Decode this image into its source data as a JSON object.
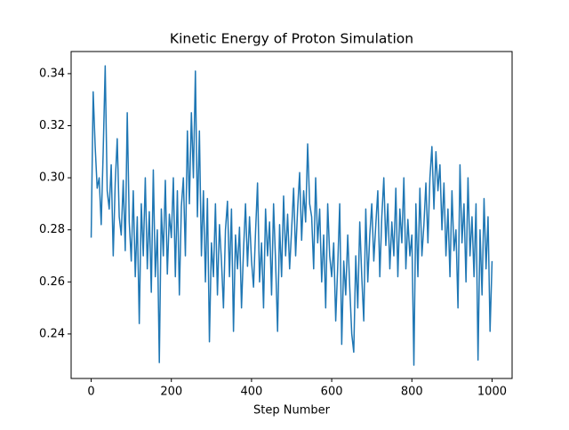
{
  "chart_data": {
    "type": "line",
    "title": "Kinetic Energy of Proton Simulation",
    "x_label": "Step Number",
    "color": "#1f77b4",
    "xlim": [
      -50,
      1050
    ],
    "xticks": [
      0,
      200,
      400,
      600,
      800,
      1000
    ],
    "ylim": [
      0.2229,
      0.3485
    ],
    "yticks": [
      0.24,
      0.26,
      0.28,
      {
        "value": 0.3,
        "label": "0.30"
      },
      0.32,
      0.34
    ],
    "x": [
      0,
      5,
      10,
      15,
      20,
      25,
      30,
      35,
      40,
      45,
      50,
      55,
      60,
      65,
      70,
      75,
      80,
      85,
      90,
      95,
      100,
      105,
      110,
      115,
      120,
      125,
      130,
      135,
      140,
      145,
      150,
      155,
      160,
      165,
      170,
      175,
      180,
      185,
      190,
      195,
      200,
      205,
      210,
      215,
      220,
      225,
      230,
      235,
      240,
      245,
      250,
      255,
      260,
      265,
      270,
      275,
      280,
      285,
      290,
      295,
      300,
      305,
      310,
      315,
      320,
      325,
      330,
      335,
      340,
      345,
      350,
      355,
      360,
      365,
      370,
      375,
      380,
      385,
      390,
      395,
      400,
      405,
      410,
      415,
      420,
      425,
      430,
      435,
      440,
      445,
      450,
      455,
      460,
      465,
      470,
      475,
      480,
      485,
      490,
      495,
      500,
      505,
      510,
      515,
      520,
      525,
      530,
      535,
      540,
      545,
      550,
      555,
      560,
      565,
      570,
      575,
      580,
      585,
      590,
      595,
      600,
      605,
      610,
      615,
      620,
      625,
      630,
      635,
      640,
      645,
      650,
      655,
      660,
      665,
      670,
      675,
      680,
      685,
      690,
      695,
      700,
      705,
      710,
      715,
      720,
      725,
      730,
      735,
      740,
      745,
      750,
      755,
      760,
      765,
      770,
      775,
      780,
      785,
      790,
      795,
      800,
      805,
      810,
      815,
      820,
      825,
      830,
      835,
      840,
      845,
      850,
      855,
      860,
      865,
      870,
      875,
      880,
      885,
      890,
      895,
      900,
      905,
      910,
      915,
      920,
      925,
      930,
      935,
      940,
      945,
      950,
      955,
      960,
      965,
      970,
      975,
      980,
      985,
      990,
      995,
      1000
    ],
    "values": [
      0.277,
      0.333,
      0.312,
      0.296,
      0.3,
      0.282,
      0.31,
      0.343,
      0.295,
      0.288,
      0.305,
      0.27,
      0.298,
      0.315,
      0.285,
      0.278,
      0.299,
      0.272,
      0.325,
      0.283,
      0.268,
      0.295,
      0.262,
      0.285,
      0.244,
      0.29,
      0.27,
      0.3,
      0.265,
      0.287,
      0.256,
      0.303,
      0.262,
      0.28,
      0.229,
      0.288,
      0.27,
      0.299,
      0.263,
      0.286,
      0.277,
      0.3,
      0.262,
      0.295,
      0.255,
      0.289,
      0.3,
      0.27,
      0.318,
      0.29,
      0.325,
      0.3,
      0.341,
      0.285,
      0.318,
      0.27,
      0.295,
      0.26,
      0.292,
      0.237,
      0.275,
      0.262,
      0.29,
      0.255,
      0.282,
      0.268,
      0.25,
      0.28,
      0.291,
      0.262,
      0.288,
      0.241,
      0.278,
      0.265,
      0.281,
      0.25,
      0.272,
      0.29,
      0.266,
      0.285,
      0.268,
      0.258,
      0.279,
      0.298,
      0.26,
      0.275,
      0.25,
      0.288,
      0.27,
      0.283,
      0.255,
      0.29,
      0.268,
      0.241,
      0.282,
      0.262,
      0.293,
      0.27,
      0.286,
      0.265,
      0.28,
      0.296,
      0.27,
      0.288,
      0.302,
      0.276,
      0.295,
      0.283,
      0.313,
      0.29,
      0.285,
      0.265,
      0.3,
      0.275,
      0.288,
      0.26,
      0.278,
      0.25,
      0.29,
      0.27,
      0.262,
      0.275,
      0.245,
      0.266,
      0.29,
      0.236,
      0.268,
      0.255,
      0.278,
      0.258,
      0.24,
      0.233,
      0.27,
      0.25,
      0.283,
      0.262,
      0.245,
      0.288,
      0.26,
      0.278,
      0.29,
      0.268,
      0.282,
      0.295,
      0.262,
      0.285,
      0.3,
      0.274,
      0.29,
      0.265,
      0.283,
      0.27,
      0.296,
      0.262,
      0.288,
      0.275,
      0.3,
      0.265,
      0.284,
      0.27,
      0.278,
      0.228,
      0.29,
      0.262,
      0.296,
      0.27,
      0.282,
      0.298,
      0.275,
      0.3,
      0.312,
      0.288,
      0.31,
      0.295,
      0.305,
      0.28,
      0.298,
      0.27,
      0.288,
      0.262,
      0.295,
      0.272,
      0.28,
      0.25,
      0.305,
      0.275,
      0.29,
      0.26,
      0.3,
      0.27,
      0.285,
      0.262,
      0.29,
      0.23,
      0.28,
      0.255,
      0.292,
      0.265,
      0.285,
      0.241,
      0.268
    ]
  }
}
